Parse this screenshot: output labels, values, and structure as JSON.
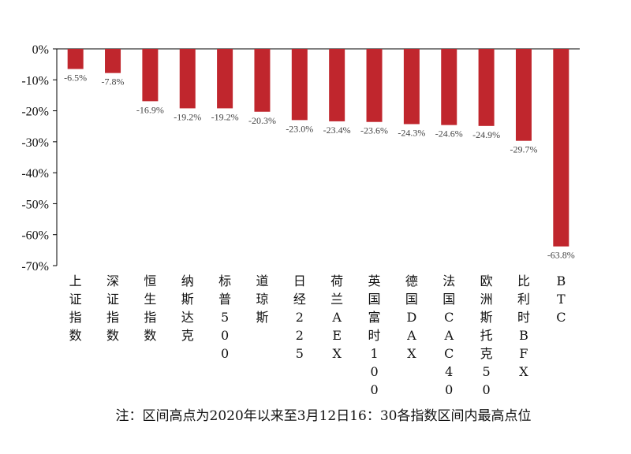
{
  "chart_data": {
    "type": "bar",
    "categories": [
      "上证指数",
      "深证指数",
      "恒生指数",
      "纳斯达克",
      "标普500",
      "道琼斯",
      "日经225",
      "荷兰AEX",
      "英国富时100",
      "德国DAX",
      "法国CAC40",
      "欧洲斯托克50",
      "比利时BFX",
      "BTC"
    ],
    "values": [
      -6.5,
      -7.8,
      -16.9,
      -19.2,
      -19.2,
      -20.3,
      -23.0,
      -23.4,
      -23.6,
      -24.3,
      -24.6,
      -24.9,
      -29.7,
      -63.8
    ],
    "data_labels": [
      "-6.5%",
      "-7.8%",
      "-16.9%",
      "-19.2%",
      "-19.2%",
      "-20.3%",
      "-23.0%",
      "-23.4%",
      "-23.6%",
      "-24.3%",
      "-24.6%",
      "-24.9%",
      "-29.7%",
      "-63.8%"
    ],
    "y_ticks": [
      0,
      -10,
      -20,
      -30,
      -40,
      -50,
      -60,
      -70
    ],
    "y_tick_labels": [
      "0%",
      "-10%",
      "-20%",
      "-30%",
      "-40%",
      "-50%",
      "-60%",
      "-70%"
    ],
    "ylim": [
      -70,
      0
    ],
    "grid": false,
    "bar_color": "#C0262D",
    "note": "注：区间高点为2020年以来至3月12日16：30各指数区间内最高点位"
  }
}
